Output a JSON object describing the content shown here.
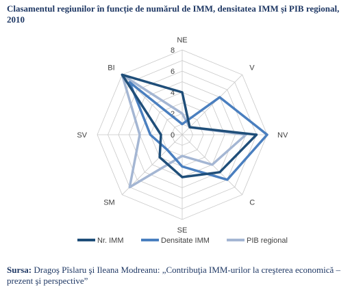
{
  "title": "Clasamentul regiunilor în funcție de numărul de IMM, densitatea IMM și PIB regional, 2010",
  "source": {
    "label": "Sursa:",
    "text": " Dragoş Pîslaru şi Ileana Modreanu:  „Contribuţia IMM-urilor la creşterea economică – prezent şi perspective”"
  },
  "chart_data": {
    "type": "radar",
    "axes": [
      "NE",
      "V",
      "NV",
      "C",
      "SE",
      "SM",
      "SV",
      "BI"
    ],
    "rlim": [
      0,
      8
    ],
    "ticks": [
      0,
      2,
      4,
      6,
      8
    ],
    "grid": true,
    "legend_position": "bottom",
    "series": [
      {
        "name": "Nr. IMM",
        "color": "#1f4e79",
        "values": [
          4,
          1,
          7,
          5,
          4,
          3,
          2,
          8
        ]
      },
      {
        "name": "Densitate IMM",
        "color": "#4a7fbf",
        "values": [
          1,
          5,
          8,
          6,
          3,
          2,
          3,
          7
        ]
      },
      {
        "name": "PIB regional",
        "color": "#a4b6d3",
        "values": [
          2,
          1,
          6,
          4,
          2,
          7,
          4,
          8
        ]
      }
    ]
  }
}
